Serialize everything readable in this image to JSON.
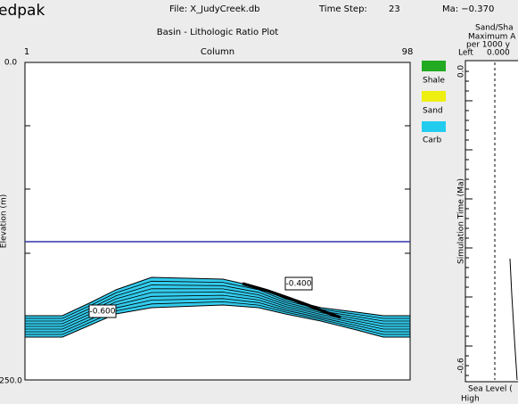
{
  "header": {
    "app": "edpak",
    "file": "File: X_JudyCreek.db",
    "time_step_label": "Time Step:",
    "time_step": "23",
    "ma": "Ma: −0.370"
  },
  "plot": {
    "title": "Basin - Lithologic Ratio Plot",
    "x_start": "1",
    "x_label": "Column",
    "x_end": "98",
    "y_top": "0.0",
    "y_bottom": "250.0",
    "y_label": "Elevation (m)",
    "annotations": [
      "-0.600",
      "-0.400"
    ]
  },
  "legend": [
    "Shale",
    "Sand",
    "Carb"
  ],
  "side_panel": {
    "title_lines": [
      "Sand/Sha",
      "Maximum A",
      "per 1000 y"
    ],
    "left_label": "Left",
    "left_value": "0.000",
    "y_top": "0.0",
    "y_bottom": "-0.6",
    "y_label": "Simulation Time (Ma)",
    "sea_level": "Sea Level (",
    "high": "High"
  }
}
